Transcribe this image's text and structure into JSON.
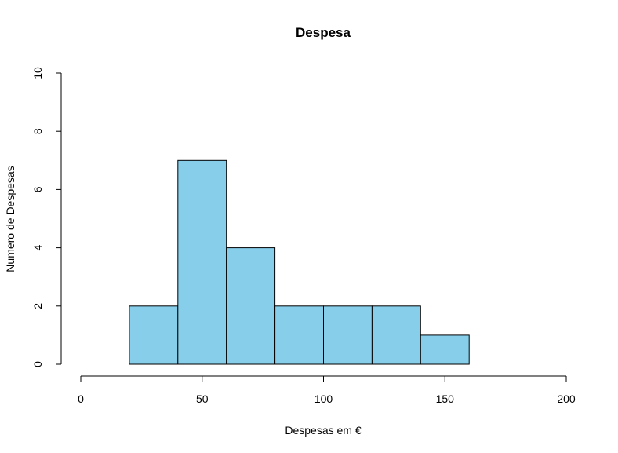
{
  "chart_data": {
    "type": "bar",
    "subtype": "histogram",
    "title": "Despesa",
    "xlabel": "Despesas em €",
    "ylabel": "Numero de Despesas",
    "bins": [
      {
        "from": 20,
        "to": 40,
        "count": 2
      },
      {
        "from": 40,
        "to": 60,
        "count": 7
      },
      {
        "from": 60,
        "to": 80,
        "count": 4
      },
      {
        "from": 80,
        "to": 100,
        "count": 2
      },
      {
        "from": 100,
        "to": 120,
        "count": 2
      },
      {
        "from": 120,
        "to": 140,
        "count": 2
      },
      {
        "from": 140,
        "to": 160,
        "count": 1
      }
    ],
    "xlim": [
      0,
      200
    ],
    "ylim": [
      0,
      10
    ],
    "xticks": [
      0,
      50,
      100,
      150,
      200
    ],
    "yticks": [
      0,
      2,
      4,
      6,
      8,
      10
    ],
    "bar_color": "#87CEEB",
    "grid": false,
    "legend": "none"
  }
}
